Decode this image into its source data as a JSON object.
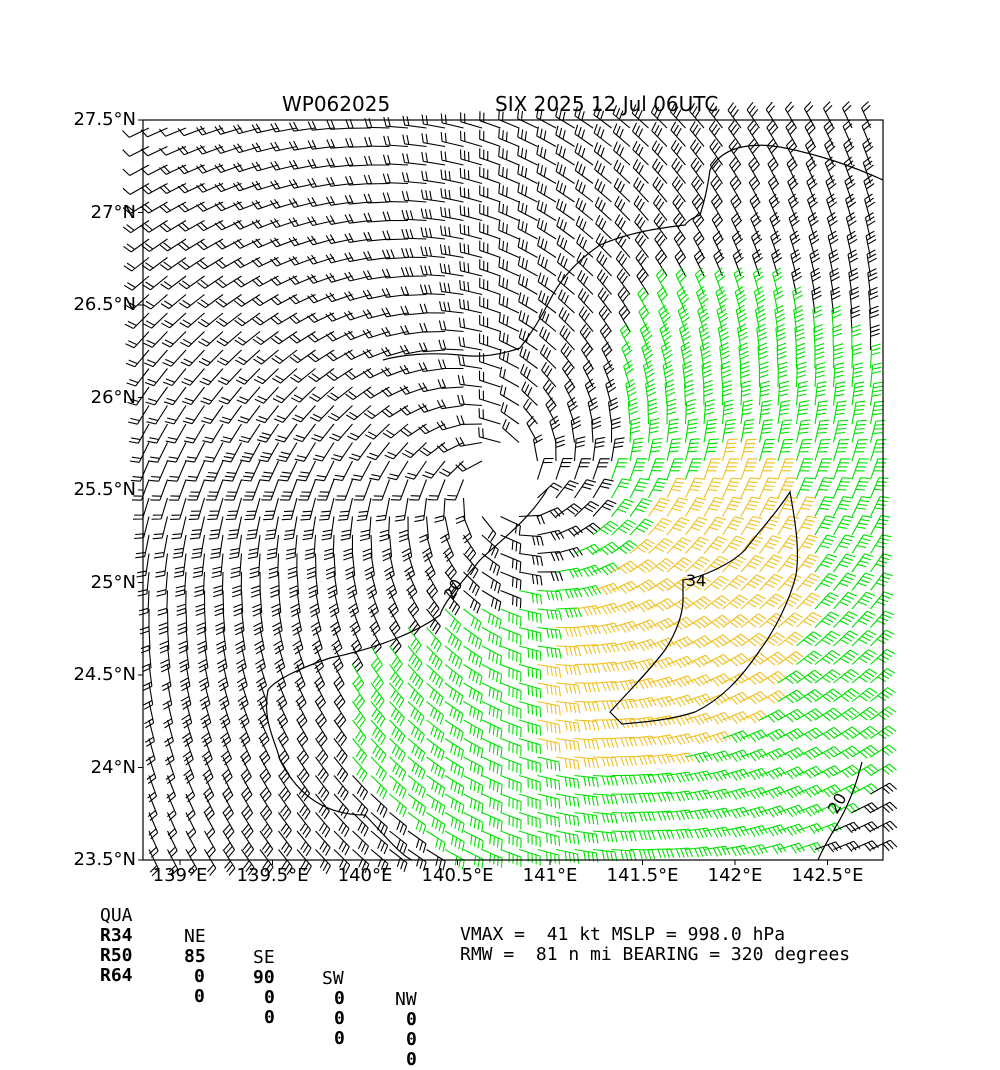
{
  "title": {
    "left": "WP062025",
    "right": "SIX 2025 12 Jul 06UTC"
  },
  "axes": {
    "lat_min": 23.5,
    "lat_max": 27.5,
    "lon_min": 138.8,
    "lon_max": 142.8,
    "x_ticks": [
      "139°E",
      "139.5°E",
      "140°E",
      "140.5°E",
      "141°E",
      "141.5°E",
      "142°E",
      "142.5°E"
    ],
    "x_tick_values": [
      139,
      139.5,
      140,
      140.5,
      141,
      141.5,
      142,
      142.5
    ],
    "y_ticks": [
      "27.5°N",
      "27°N",
      "26.5°N",
      "26°N",
      "25.5°N",
      "25°N",
      "24.5°N",
      "24°N",
      "23.5°N"
    ],
    "y_tick_values": [
      27.5,
      27,
      26.5,
      26,
      25.5,
      25,
      24.5,
      24,
      23.5
    ]
  },
  "storm": {
    "center_lon": 140.75,
    "center_lat": 25.55,
    "vmax_kt": 41
  },
  "contours": [
    {
      "label": "20",
      "value": 20
    },
    {
      "label": "34",
      "value": 34
    },
    {
      "label": "20",
      "value": 20
    }
  ],
  "wind_colors": {
    "below_34": "#000000",
    "34_to_50": "#00e000",
    "50_to_64": "#f0c020"
  },
  "quadrant_table": {
    "header": [
      "QUA",
      "NE",
      "SE",
      "SW",
      "NW"
    ],
    "rows": [
      [
        "R34",
        "85",
        "90",
        "0",
        "0"
      ],
      [
        "R50",
        "0",
        "0",
        "0",
        "0"
      ],
      [
        "R64",
        "0",
        "0",
        "0",
        "0"
      ]
    ]
  },
  "info": {
    "line1": "VMAX =  41 kt MSLP = 998.0 hPa",
    "line2": "RMW =  81 n mi BEARING = 320 degrees"
  }
}
